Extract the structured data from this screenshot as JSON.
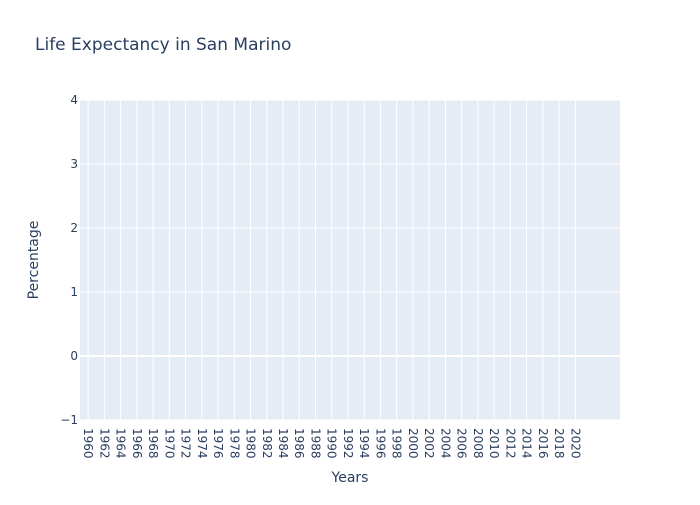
{
  "chart_data": {
    "type": "line",
    "title": "Life Expectancy in San Marino",
    "xlabel": "Years",
    "ylabel": "Percentage",
    "x_ticks": [
      "1960",
      "1962",
      "1964",
      "1966",
      "1968",
      "1970",
      "1972",
      "1974",
      "1976",
      "1978",
      "1980",
      "1982",
      "1984",
      "1986",
      "1988",
      "1990",
      "1992",
      "1994",
      "1996",
      "1998",
      "2000",
      "2002",
      "2004",
      "2006",
      "2008",
      "2010",
      "2012",
      "2014",
      "2016",
      "2018",
      "2020"
    ],
    "x_range": [
      1959,
      2025.5
    ],
    "y_ticks": [
      4,
      3,
      2,
      1,
      0,
      -1
    ],
    "y_tick_labels": [
      "4",
      "3",
      "2",
      "1",
      "0",
      "−1"
    ],
    "ylim": [
      -1,
      4
    ],
    "grid": true,
    "legend": "none",
    "series": [],
    "colors": {
      "plot_bg": "#e5ecf6",
      "grid": "#ffffff",
      "text": "#2a3f5f"
    }
  }
}
